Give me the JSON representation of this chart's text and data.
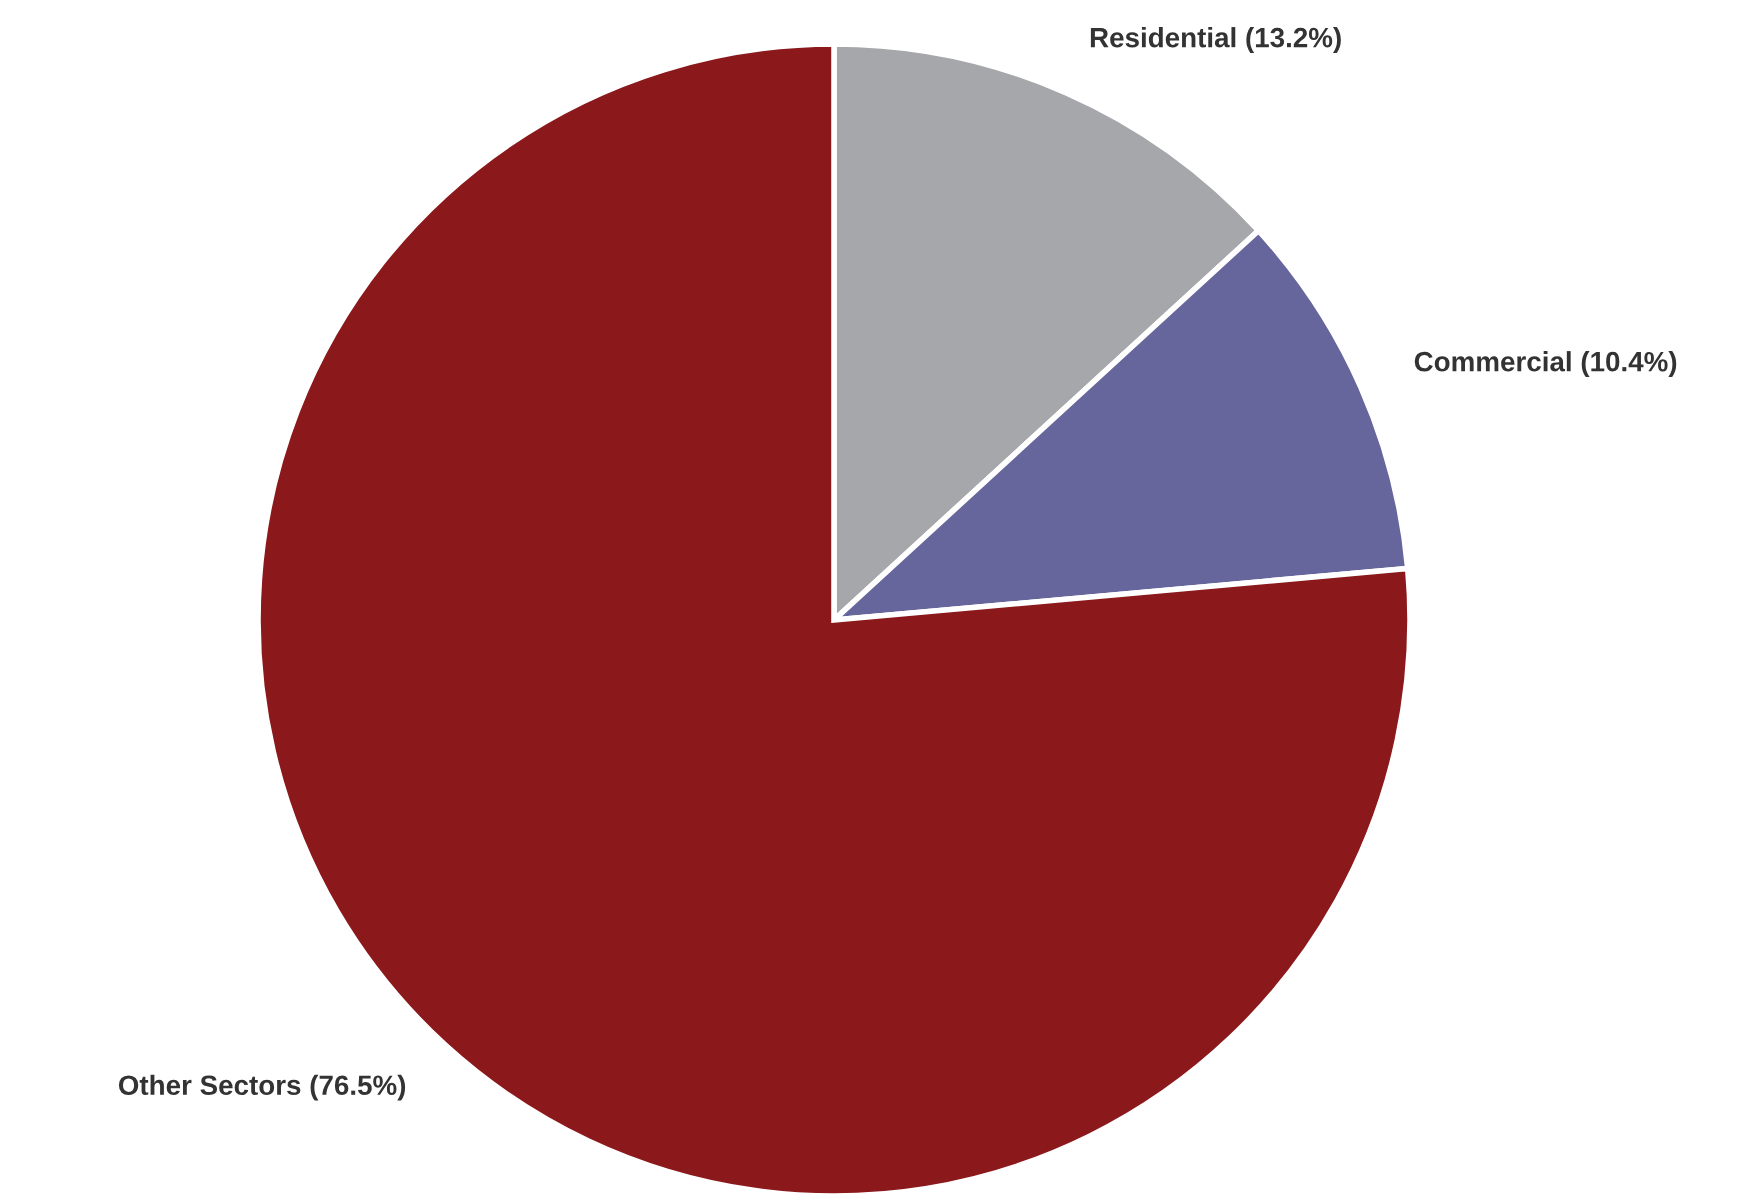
{
  "chart_data": {
    "type": "pie",
    "categories": [
      "Residential (13.2%)",
      "Commercial (10.4%)",
      "Other Sectors (76.5%)"
    ],
    "values": [
      13.2,
      10.4,
      76.5
    ],
    "colors": [
      "#a6a7ab",
      "#66659c",
      "#8b181b"
    ]
  }
}
